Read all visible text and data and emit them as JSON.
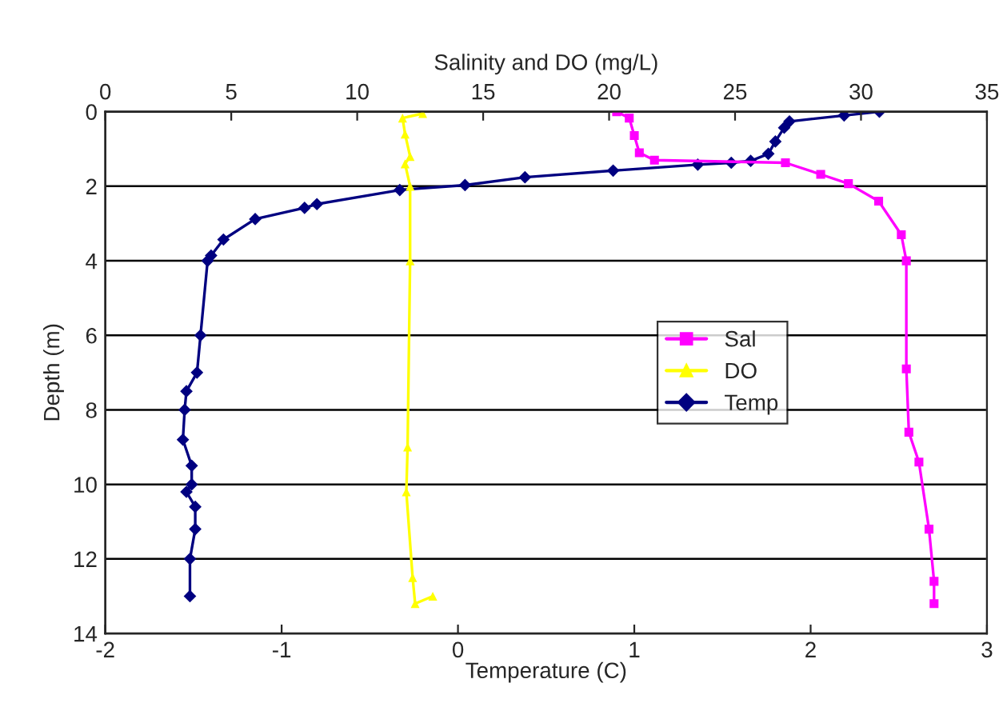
{
  "chart_data": {
    "type": "line",
    "xlabel": "Temperature (C)",
    "x2label": "Salinity and DO (mg/L)",
    "ylabel": "Depth (m)",
    "xlim": [
      -2,
      3
    ],
    "xticks": [
      -2,
      -1,
      0,
      1,
      2,
      3
    ],
    "x2lim": [
      0,
      35
    ],
    "x2ticks": [
      0,
      5,
      10,
      15,
      20,
      25,
      30,
      35
    ],
    "ylim": [
      14,
      0
    ],
    "yticks": [
      0,
      2,
      4,
      6,
      8,
      10,
      12,
      14
    ],
    "grid": "y",
    "legend": "center",
    "series": [
      {
        "name": "Sal",
        "color": "#ff00ff",
        "marker": "square",
        "axis": "x2",
        "x": [
          20.3,
          20.8,
          21.0,
          21.2,
          21.8,
          27.0,
          28.4,
          29.5,
          30.7,
          31.6,
          31.8,
          31.8,
          31.9,
          32.3,
          32.7,
          32.9,
          32.9
        ],
        "values": [
          0,
          0.17,
          0.64,
          1.1,
          1.3,
          1.37,
          1.68,
          1.93,
          2.4,
          3.3,
          4.0,
          6.9,
          8.6,
          9.4,
          11.2,
          12.6,
          13.2
        ]
      },
      {
        "name": "DO",
        "color": "#ffff00",
        "marker": "triangle",
        "axis": "x2",
        "x": [
          12.6,
          11.8,
          11.9,
          12.1,
          11.9,
          12.1,
          12.1,
          12.0,
          11.95,
          12.2,
          12.3,
          13.0
        ],
        "values": [
          0.05,
          0.17,
          0.6,
          1.2,
          1.4,
          2.0,
          4.0,
          9.0,
          10.2,
          12.5,
          13.2,
          13.0
        ]
      },
      {
        "name": "Temp",
        "color": "#000080",
        "marker": "diamond",
        "x": [
          2.39,
          2.19,
          1.88,
          1.85,
          1.8,
          1.76,
          1.66,
          1.55,
          1.36,
          0.88,
          0.38,
          0.04,
          -0.33,
          -0.8,
          -0.87,
          -1.15,
          -1.33,
          -1.4,
          -1.42,
          -1.46,
          -1.48,
          -1.54,
          -1.55,
          -1.56,
          -1.51,
          -1.51,
          -1.54,
          -1.49,
          -1.49,
          -1.52,
          -1.52
        ],
        "values": [
          0,
          0.1,
          0.26,
          0.43,
          0.8,
          1.13,
          1.32,
          1.37,
          1.42,
          1.58,
          1.76,
          1.97,
          2.1,
          2.48,
          2.58,
          2.88,
          3.43,
          3.86,
          4.0,
          6.0,
          7.0,
          7.5,
          8.0,
          8.8,
          9.5,
          10.0,
          10.2,
          10.6,
          11.2,
          12.0,
          13.0
        ]
      }
    ]
  }
}
